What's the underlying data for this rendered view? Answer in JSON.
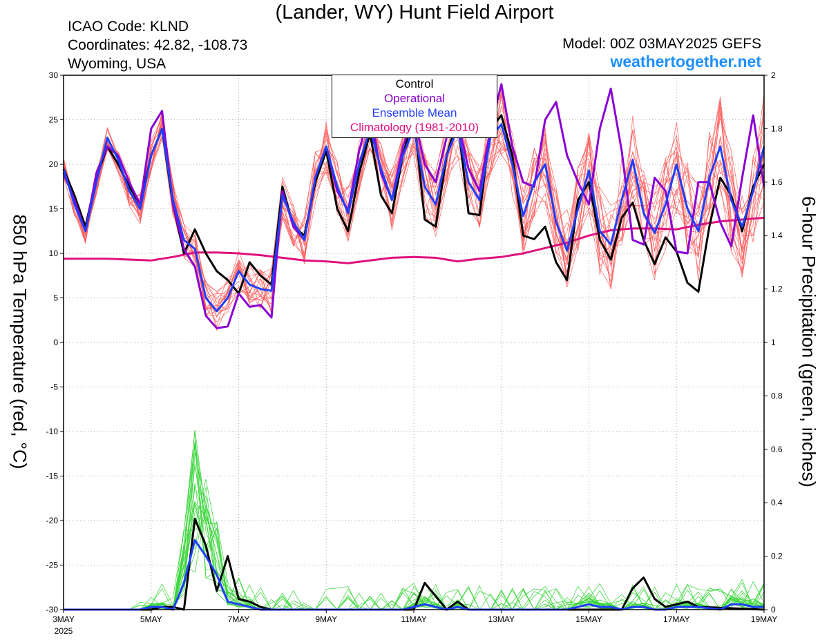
{
  "header": {
    "title": "(Lander, WY) Hunt Field Airport",
    "icao": "ICAO Code: KLND",
    "coordinates": "Coordinates: 42.82, -108.73",
    "region": "Wyoming, USA",
    "model": "Model: 00Z 03MAY2025 GEFS",
    "site": "weathertogether.net"
  },
  "legend": {
    "entries": [
      {
        "label": "Control",
        "color": "#000000"
      },
      {
        "label": "Operational",
        "color": "#8a00d4"
      },
      {
        "label": "Ensemble Mean",
        "color": "#1f3fff"
      },
      {
        "label": "Climatology (1981-2010)",
        "color": "#e0117f"
      }
    ]
  },
  "chart_data": {
    "type": "line",
    "title": "(Lander, WY) Hunt Field Airport",
    "xlabel": "",
    "ylabel": "850 hPa Temperature (red, °C)",
    "y2label": "6-hour Precipitation (green, inches)",
    "x_unit": "days since 3 May 2025 00Z",
    "xlim": [
      0,
      16
    ],
    "ylim": [
      -30,
      30
    ],
    "y2lim": [
      0,
      2
    ],
    "x_ticks": [
      {
        "value": 0,
        "label": "3MAY",
        "sub": "2025"
      },
      {
        "value": 2,
        "label": "5MAY"
      },
      {
        "value": 4,
        "label": "7MAY"
      },
      {
        "value": 6,
        "label": "9MAY"
      },
      {
        "value": 8,
        "label": "11MAY"
      },
      {
        "value": 10,
        "label": "13MAY"
      },
      {
        "value": 12,
        "label": "15MAY"
      },
      {
        "value": 14,
        "label": "17MAY"
      },
      {
        "value": 16,
        "label": "19MAY"
      }
    ],
    "y_ticks": [
      -30,
      -25,
      -20,
      -15,
      -10,
      -5,
      0,
      5,
      10,
      15,
      20,
      25,
      30
    ],
    "y2_ticks": [
      0,
      0.2,
      0.4,
      0.6,
      0.8,
      1,
      1.2,
      1.4,
      1.6,
      1.8,
      2
    ],
    "grid": "dotted",
    "legend_position": "top-center",
    "colors": {
      "members_temp": "#ff5a5a",
      "members_precip": "#35d435"
    },
    "temperature_series": [
      {
        "name": "Control",
        "color": "#000000",
        "width": 3,
        "x": [
          0,
          0.25,
          0.5,
          0.75,
          1,
          1.25,
          1.5,
          1.75,
          2,
          2.25,
          2.5,
          2.75,
          3,
          3.25,
          3.5,
          3.75,
          4,
          4.25,
          4.5,
          4.75,
          5,
          5.25,
          5.5,
          5.75,
          6,
          6.25,
          6.5,
          6.75,
          7,
          7.25,
          7.5,
          7.75,
          8,
          8.25,
          8.5,
          8.75,
          9,
          9.25,
          9.5,
          9.75,
          10,
          10.25,
          10.5,
          10.75,
          11,
          11.25,
          11.5,
          11.75,
          12,
          12.25,
          12.5,
          12.75,
          13,
          13.25,
          13.5,
          13.75,
          14,
          14.25,
          14.5,
          14.75,
          15,
          15.25,
          15.5,
          15.75,
          16
        ],
        "y": [
          19.5,
          16.5,
          13,
          18.5,
          22,
          20,
          17.5,
          15.5,
          21,
          24,
          15.5,
          10,
          12.7,
          10,
          8,
          7,
          5.5,
          9,
          7.5,
          6.5,
          17.5,
          13,
          12,
          18,
          21.5,
          15,
          12.5,
          19,
          23.5,
          16.5,
          14.5,
          21,
          25.5,
          13.8,
          13,
          21,
          25,
          14.5,
          14.3,
          24,
          25.5,
          21,
          12,
          11.6,
          13,
          9,
          7,
          16,
          18,
          11.5,
          9.3,
          14,
          15.7,
          11.5,
          8.8,
          11.8,
          10.2,
          6.7,
          5.7,
          13,
          18.5,
          16.5,
          12.5,
          17.5,
          20
        ]
      },
      {
        "name": "Operational",
        "color": "#8a00d4",
        "width": 3,
        "x": [
          0,
          0.25,
          0.5,
          0.75,
          1,
          1.25,
          1.5,
          1.75,
          2,
          2.25,
          2.5,
          2.75,
          3,
          3.25,
          3.5,
          3.75,
          4,
          4.25,
          4.5,
          4.75,
          5,
          5.25,
          5.5,
          5.75,
          6,
          6.25,
          6.5,
          6.75,
          7,
          7.25,
          7.5,
          7.75,
          8,
          8.25,
          8.5,
          8.75,
          9,
          9.25,
          9.5,
          9.75,
          10,
          10.25,
          10.5,
          10.75,
          11,
          11.25,
          11.5,
          11.75,
          12,
          12.25,
          12.5,
          12.75,
          13,
          13.25,
          13.5,
          13.75,
          14,
          14.25,
          14.5,
          14.75,
          15,
          15.25,
          15.5,
          15.75,
          16
        ],
        "y": [
          19,
          16,
          12.5,
          19,
          22,
          21,
          18,
          15.5,
          24,
          26,
          15.5,
          10.5,
          8.5,
          3,
          1.6,
          1.8,
          5.5,
          4,
          4.2,
          2.8,
          17,
          13,
          11.5,
          18.5,
          22,
          17,
          14.8,
          21.5,
          26,
          19,
          16,
          22,
          25.5,
          20,
          18,
          23,
          25,
          19.5,
          17,
          24,
          29,
          22,
          18,
          17.5,
          25,
          27,
          21,
          18,
          15.5,
          24,
          28.5,
          21.5,
          11.5,
          11,
          18.5,
          17,
          10.2,
          10,
          18,
          18,
          13.5,
          10.8,
          18.5,
          25.5,
          17.5
        ]
      },
      {
        "name": "Ensemble Mean",
        "color": "#1f3fff",
        "width": 3,
        "x": [
          0,
          0.25,
          0.5,
          0.75,
          1,
          1.25,
          1.5,
          1.75,
          2,
          2.25,
          2.5,
          2.75,
          3,
          3.25,
          3.5,
          3.75,
          4,
          4.25,
          4.5,
          4.75,
          5,
          5.25,
          5.5,
          5.75,
          6,
          6.25,
          6.5,
          6.75,
          7,
          7.25,
          7.5,
          7.75,
          8,
          8.25,
          8.5,
          8.75,
          9,
          9.25,
          9.5,
          9.75,
          10,
          10.25,
          10.5,
          10.75,
          11,
          11.25,
          11.5,
          11.75,
          12,
          12.25,
          12.5,
          12.75,
          13,
          13.25,
          13.5,
          13.75,
          14,
          14.25,
          14.5,
          14.75,
          15,
          15.25,
          15.5,
          15.75,
          16
        ],
        "y": [
          19.5,
          15.5,
          12.5,
          18,
          23,
          20.5,
          17,
          15,
          21,
          24,
          16,
          11.5,
          10.5,
          5,
          3.5,
          5,
          8,
          6.5,
          6,
          5.8,
          16.5,
          13.5,
          11.5,
          18.5,
          22,
          17.5,
          14.5,
          20,
          24,
          19.5,
          16,
          21,
          24,
          17.5,
          15.5,
          21,
          24,
          18,
          16,
          23,
          24.5,
          20,
          14.2,
          18,
          20,
          13.5,
          10.3,
          15,
          19.3,
          12.5,
          11,
          16,
          20.5,
          14.5,
          12.3,
          15.5,
          20,
          15,
          12.5,
          18.5,
          22,
          16,
          13,
          17,
          22
        ]
      },
      {
        "name": "Climatology (1981-2010)",
        "color": "#e0117f",
        "width": 3,
        "x": [
          0,
          0.5,
          1,
          1.5,
          2,
          2.5,
          3,
          3.5,
          4,
          4.5,
          5,
          5.5,
          6,
          6.5,
          7,
          7.5,
          8,
          8.5,
          9,
          9.5,
          10,
          10.5,
          11,
          11.5,
          12,
          12.5,
          13,
          13.5,
          14,
          14.5,
          15,
          15.5,
          16
        ],
        "y": [
          9.4,
          9.4,
          9.4,
          9.3,
          9.2,
          9.6,
          10.1,
          10.1,
          10,
          9.8,
          9.5,
          9.2,
          9.1,
          8.9,
          9.2,
          9.5,
          9.6,
          9.5,
          9.1,
          9.4,
          9.6,
          10,
          10.6,
          11.2,
          12,
          12.6,
          12.8,
          12.8,
          12.7,
          13.2,
          13.6,
          13.8,
          14
        ]
      }
    ],
    "precipitation_series": [
      {
        "name": "Control",
        "color": "#000000",
        "width": 3,
        "x": [
          0,
          1.5,
          1.75,
          2,
          2.25,
          2.5,
          2.75,
          3,
          3.25,
          3.5,
          3.75,
          4,
          4.25,
          4.5,
          4.75,
          5,
          7,
          7.75,
          8,
          8.25,
          8.5,
          8.75,
          9,
          9.25,
          9.5,
          10,
          12,
          12.75,
          13,
          13.25,
          13.5,
          13.75,
          14,
          14.25,
          14.5,
          16
        ],
        "y": [
          0,
          0,
          0,
          0,
          0.01,
          0.01,
          0,
          0.34,
          0.24,
          0.07,
          0.2,
          0.04,
          0.03,
          0.01,
          0,
          0,
          0,
          0,
          0,
          0.1,
          0.05,
          0,
          0.03,
          0,
          0,
          0,
          0,
          0,
          0.08,
          0.12,
          0.04,
          0.01,
          0.02,
          0.03,
          0.01,
          0
        ]
      },
      {
        "name": "Ensemble Mean",
        "color": "#1f3fff",
        "width": 3,
        "x": [
          0,
          1.5,
          1.75,
          2,
          2.25,
          2.5,
          2.75,
          3,
          3.25,
          3.5,
          3.75,
          4,
          4.25,
          4.5,
          4.75,
          5,
          7,
          7.75,
          8,
          8.25,
          8.5,
          8.75,
          9,
          9.25,
          9.5,
          10,
          11.5,
          11.75,
          12,
          12.25,
          12.5,
          12.75,
          13,
          13.25,
          13.5,
          13.75,
          14,
          14.5,
          15,
          15.25,
          15.5,
          15.75,
          16
        ],
        "y": [
          0,
          0,
          0,
          0.01,
          0.01,
          0,
          0.1,
          0.26,
          0.2,
          0.13,
          0.03,
          0.02,
          0.01,
          0,
          0,
          0,
          0,
          0,
          0.01,
          0.02,
          0.01,
          0,
          0.01,
          0,
          0,
          0,
          0,
          0.01,
          0.02,
          0.01,
          0.01,
          0,
          0.01,
          0.01,
          0,
          0,
          0.01,
          0.01,
          0,
          0.02,
          0.02,
          0.01,
          0.01
        ]
      }
    ]
  }
}
